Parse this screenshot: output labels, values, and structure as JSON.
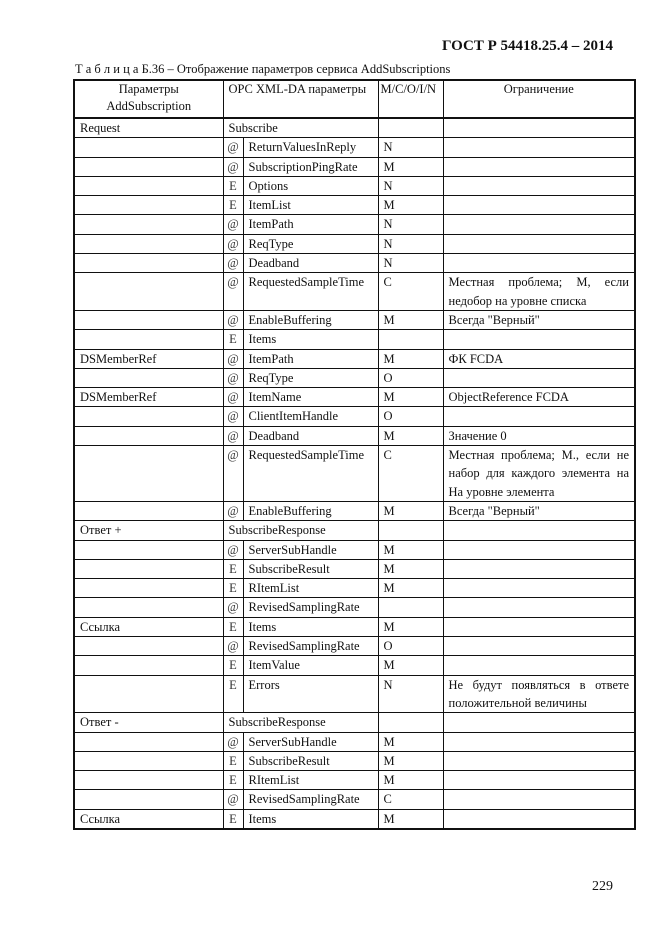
{
  "header": {
    "standard": "ГОСТ Р 54418.25.4 – 2014"
  },
  "caption": "Т а б л и ц а Б.36 – Отображение параметров сервиса AddSubscriptions",
  "table": {
    "columns": [
      "Параметры AddSubscription",
      "OPC XML-DA параметры",
      "M/C/O/I/N",
      "Ограничение"
    ],
    "rows": [
      {
        "param": "Request",
        "span": "Subscribe",
        "mco": "",
        "limit": ""
      },
      {
        "param": "",
        "pre": "@",
        "name": "ReturnValuesInReply",
        "mco": "N",
        "limit": ""
      },
      {
        "param": "",
        "pre": "@",
        "name": "SubscriptionPingRate",
        "mco": "M",
        "limit": ""
      },
      {
        "param": "",
        "pre": "E",
        "name": "Options",
        "mco": "N",
        "limit": ""
      },
      {
        "param": "",
        "pre": "E",
        "name": "ItemList",
        "mco": "M",
        "limit": ""
      },
      {
        "param": "",
        "pre": "@",
        "name": "ItemPath",
        "mco": "N",
        "limit": ""
      },
      {
        "param": "",
        "pre": "@",
        "name": "ReqType",
        "mco": "N",
        "limit": ""
      },
      {
        "param": "",
        "pre": "@",
        "name": "Deadband",
        "mco": "N",
        "limit": ""
      },
      {
        "param": "",
        "pre": "@",
        "name": "RequestedSampleTime",
        "mco": "C",
        "limit": "Местная проблема; M, если недобор на уровне списка"
      },
      {
        "param": "",
        "pre": "@",
        "name": "EnableBuffering",
        "mco": "M",
        "limit": "Всегда \"Верный\""
      },
      {
        "param": "",
        "pre": "E",
        "name": "Items",
        "mco": "",
        "limit": ""
      },
      {
        "param": "DSMemberRef",
        "pre": "@",
        "name": "ItemPath",
        "mco": "M",
        "limit": "ФК FCDA"
      },
      {
        "param": "",
        "pre": "@",
        "name": "ReqType",
        "mco": "O",
        "limit": ""
      },
      {
        "param": "DSMemberRef",
        "pre": "@",
        "name": "ItemName",
        "mco": "M",
        "limit": "ObjectReference FCDA"
      },
      {
        "param": "",
        "pre": "@",
        "name": "ClientItemHandle",
        "mco": "O",
        "limit": ""
      },
      {
        "param": "",
        "pre": "@",
        "name": "Deadband",
        "mco": "M",
        "limit": "Значение 0"
      },
      {
        "param": "",
        "pre": "@",
        "name": "RequestedSampleTime",
        "mco": "C",
        "limit": "Местная проблема; M., если не набор для каждого элемента на На уровне элемента"
      },
      {
        "param": "",
        "pre": "@",
        "name": "EnableBuffering",
        "mco": "M",
        "limit": "Всегда \"Верный\""
      },
      {
        "param": "Ответ +",
        "span": "SubscribeResponse",
        "mco": "",
        "limit": ""
      },
      {
        "param": "",
        "pre": "@",
        "name": "ServerSubHandle",
        "mco": "M",
        "limit": ""
      },
      {
        "param": "",
        "pre": "E",
        "name": "SubscribeResult",
        "mco": "M",
        "limit": ""
      },
      {
        "param": "",
        "pre": "E",
        "name": "RItemList",
        "mco": "M",
        "limit": ""
      },
      {
        "param": "",
        "pre": "@",
        "name": "RevisedSamplingRate",
        "mco": "",
        "limit": ""
      },
      {
        "param": "Ссылка",
        "pre": "E",
        "name": "Items",
        "mco": "M",
        "limit": ""
      },
      {
        "param": "",
        "pre": "@",
        "name": "RevisedSamplingRate",
        "mco": "O",
        "limit": ""
      },
      {
        "param": "",
        "pre": "E",
        "name": "ItemValue",
        "mco": "M",
        "limit": ""
      },
      {
        "param": "",
        "pre": "E",
        "name": "Errors",
        "mco": "N",
        "limit": "Не будут появляться в ответе положительной величины"
      },
      {
        "param": "Ответ -",
        "span": "SubscribeResponse",
        "mco": "",
        "limit": ""
      },
      {
        "param": "",
        "pre": "@",
        "name": "ServerSubHandle",
        "mco": "M",
        "limit": ""
      },
      {
        "param": "",
        "pre": "E",
        "name": "SubscribeResult",
        "mco": "M",
        "limit": ""
      },
      {
        "param": "",
        "pre": "E",
        "name": "RItemList",
        "mco": "M",
        "limit": ""
      },
      {
        "param": "",
        "pre": "@",
        "name": "RevisedSamplingRate",
        "mco": "C",
        "limit": ""
      },
      {
        "param": "Ссылка",
        "pre": "E",
        "name": "Items",
        "mco": "M",
        "limit": ""
      }
    ]
  },
  "footer": {
    "page_number": "229"
  }
}
